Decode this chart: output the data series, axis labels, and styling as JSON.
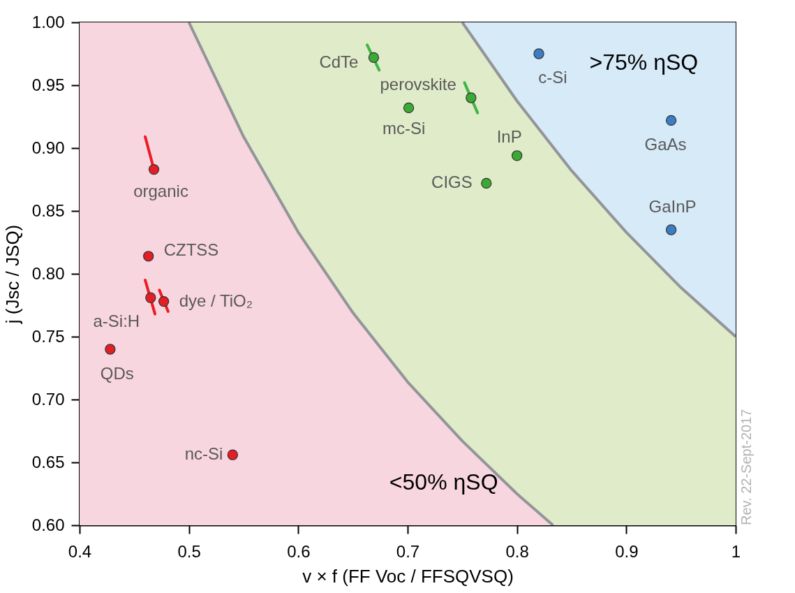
{
  "chart_data": {
    "type": "scatter",
    "xlabel": "v × f  (FF Voc / FFSQVSQ)",
    "ylabel": "j  (Jsc / JSQ)",
    "xlim": [
      0.4,
      1.0
    ],
    "ylim": [
      0.6,
      1.0
    ],
    "xticks": [
      0.4,
      0.5,
      0.6,
      0.7,
      0.8,
      0.9,
      1
    ],
    "yticks": [
      {
        "value": 0.6,
        "label": "0.60"
      },
      {
        "value": 0.65,
        "label": "0.65"
      },
      {
        "value": 0.7,
        "label": "0.70"
      },
      {
        "value": 0.75,
        "label": "0.75"
      },
      {
        "value": 0.8,
        "label": "0.80"
      },
      {
        "value": 0.85,
        "label": "0.85"
      },
      {
        "value": 0.9,
        "label": "0.90"
      },
      {
        "value": 0.95,
        "label": "0.95"
      },
      {
        "value": 1.0,
        "label": "1.00"
      }
    ],
    "grid": false,
    "legend": false,
    "marker": "circle",
    "line_style": "solid",
    "series": [
      {
        "type": "area",
        "marker": "none",
        "color": "#f8d6df",
        "x": [
          0.4,
          0.5,
          0.55,
          0.6,
          0.65,
          0.7,
          0.75,
          0.8,
          0.833
        ],
        "values": [
          1.0,
          1.0,
          0.909,
          0.833,
          0.769,
          0.714,
          0.667,
          0.625,
          0.6
        ]
      },
      {
        "type": "area",
        "marker": "none",
        "color": "#e0ebc9",
        "x": [
          0.5,
          0.55,
          0.6,
          0.65,
          0.7,
          0.75,
          0.8,
          0.85,
          0.9,
          0.95,
          1.0
        ],
        "values": [
          1.0,
          1.0,
          1.0,
          1.0,
          1.0,
          1.0,
          0.9375,
          0.882,
          0.833,
          0.789,
          0.75
        ]
      },
      {
        "type": "area",
        "marker": "none",
        "color": "#d6eaf8",
        "x": [
          0.75,
          1.0
        ],
        "values": [
          1.0,
          1.0
        ]
      },
      {
        "type": "line",
        "marker": "none",
        "color": "#ec1c24",
        "x": [
          0.46,
          0.468
        ],
        "values": [
          0.909,
          0.883
        ]
      },
      {
        "type": "line",
        "marker": "none",
        "color": "#ec1c24",
        "x": [
          0.46,
          0.469
        ],
        "values": [
          0.795,
          0.768
        ]
      },
      {
        "type": "line",
        "marker": "none",
        "color": "#ec1c24",
        "x": [
          0.473,
          0.481
        ],
        "values": [
          0.787,
          0.77
        ]
      },
      {
        "type": "line",
        "marker": "none",
        "color": "#3fb549",
        "x": [
          0.663,
          0.674
        ],
        "values": [
          0.982,
          0.962
        ]
      },
      {
        "type": "line",
        "marker": "none",
        "color": "#3fb549",
        "x": [
          0.752,
          0.764
        ],
        "values": [
          0.952,
          0.928
        ]
      },
      {
        "color": "#e31e24",
        "x": [
          0.468,
          0.463,
          0.465,
          0.477,
          0.428,
          0.54
        ],
        "values": [
          0.883,
          0.814,
          0.781,
          0.778,
          0.74,
          0.656
        ]
      },
      {
        "color": "#3aaa35",
        "x": [
          0.669,
          0.758,
          0.701,
          0.8,
          0.772
        ],
        "values": [
          0.972,
          0.94,
          0.932,
          0.894,
          0.872
        ]
      },
      {
        "color": "#3b7dc4",
        "x": [
          0.82,
          0.941,
          0.941
        ],
        "values": [
          0.975,
          0.922,
          0.835
        ]
      }
    ],
    "annotations": [
      {
        "text": "organic",
        "x": 0.468,
        "y": 0.883
      },
      {
        "text": "CZTSS",
        "x": 0.463,
        "y": 0.814
      },
      {
        "text": "a-Si:H",
        "x": 0.465,
        "y": 0.781
      },
      {
        "text": "dye / TiO₂",
        "x": 0.477,
        "y": 0.778
      },
      {
        "text": "QDs",
        "x": 0.428,
        "y": 0.74
      },
      {
        "text": "nc-Si",
        "x": 0.54,
        "y": 0.656
      },
      {
        "text": "CdTe",
        "x": 0.669,
        "y": 0.972
      },
      {
        "text": "perovskite",
        "x": 0.758,
        "y": 0.94
      },
      {
        "text": "mc-Si",
        "x": 0.701,
        "y": 0.932
      },
      {
        "text": "InP",
        "x": 0.8,
        "y": 0.894
      },
      {
        "text": "CIGS",
        "x": 0.772,
        "y": 0.872
      },
      {
        "text": "c-Si",
        "x": 0.82,
        "y": 0.975
      },
      {
        "text": "GaAs",
        "x": 0.941,
        "y": 0.922
      },
      {
        "text": "GaInP",
        "x": 0.941,
        "y": 0.835
      },
      ">75% ηSQ",
      "<50% ηSQ",
      "Rev. 22-Sept-2017"
    ]
  }
}
